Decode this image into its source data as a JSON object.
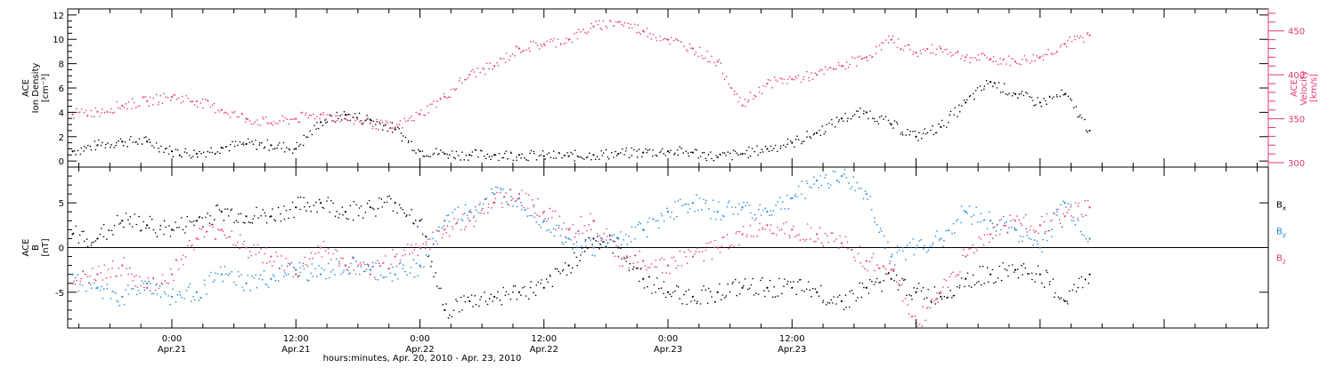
{
  "chart_data": [
    {
      "type": "scatter",
      "panel": "top",
      "ylabel_left": [
        "ACE",
        "Ion Density",
        "[cm⁻³]"
      ],
      "ylabel_right": [
        "ACE",
        "Velocity",
        "[km/s]"
      ],
      "ylim_left": [
        -0.5,
        12.5
      ],
      "yticks_left": [
        "0",
        "2",
        "4",
        "6",
        "8",
        "10",
        "12"
      ],
      "ylim_right": [
        295,
        475
      ],
      "yticks_right": [
        "300",
        "350",
        "400",
        "450"
      ],
      "series": [
        {
          "color": "#000000",
          "axis": "left",
          "x": [
            -0.4,
            -0.3,
            -0.2,
            -0.1,
            0.0,
            0.1,
            0.2,
            0.3,
            0.4,
            0.5,
            0.6,
            0.7,
            0.8,
            0.9,
            1.0,
            1.1,
            1.2,
            1.3,
            1.4,
            1.5,
            1.6,
            1.7,
            1.8,
            1.9,
            2.0,
            2.1,
            2.2,
            2.3,
            2.4,
            2.5,
            2.6,
            2.7,
            2.8,
            2.9,
            3.0,
            3.1,
            3.2,
            3.3,
            3.4,
            3.5,
            3.6,
            3.7
          ],
          "y": [
            0.8,
            1.3,
            1.6,
            1.6,
            0.8,
            0.6,
            1.1,
            1.4,
            1.3,
            1.0,
            3.2,
            3.8,
            3.4,
            2.6,
            0.8,
            0.6,
            0.5,
            0.5,
            0.5,
            0.4,
            0.4,
            0.5,
            0.6,
            0.7,
            0.8,
            0.7,
            0.3,
            0.6,
            1.0,
            1.5,
            2.3,
            3.5,
            4.0,
            3.0,
            2.0,
            2.8,
            4.8,
            6.5,
            5.5,
            4.8,
            5.5,
            2.5
          ]
        },
        {
          "color": "#e8386e",
          "axis": "right",
          "x": [
            -0.4,
            -0.3,
            -0.2,
            -0.1,
            0.0,
            0.1,
            0.2,
            0.3,
            0.4,
            0.5,
            0.6,
            0.7,
            0.8,
            0.9,
            1.0,
            1.1,
            1.2,
            1.3,
            1.4,
            1.5,
            1.6,
            1.7,
            1.8,
            1.9,
            2.0,
            2.1,
            2.2,
            2.3,
            2.4,
            2.5,
            2.6,
            2.7,
            2.8,
            2.9,
            3.0,
            3.1,
            3.2,
            3.3,
            3.4,
            3.5,
            3.6,
            3.7
          ],
          "y": [
            355,
            358,
            365,
            370,
            375,
            370,
            360,
            350,
            345,
            350,
            355,
            350,
            345,
            340,
            355,
            375,
            400,
            410,
            430,
            435,
            440,
            455,
            460,
            450,
            440,
            430,
            415,
            365,
            390,
            395,
            400,
            410,
            420,
            440,
            425,
            430,
            420,
            418,
            415,
            420,
            435,
            445
          ]
        }
      ]
    },
    {
      "type": "scatter",
      "panel": "bottom",
      "ylabel": [
        "ACE",
        "B",
        "[nT]"
      ],
      "ylim": [
        -9,
        9
      ],
      "yticks": [
        "-5",
        "0",
        "5"
      ],
      "legend": [
        "B",
        "B",
        "B"
      ],
      "legend_subscripts": [
        "x",
        "y",
        "z"
      ],
      "legend_placement": "right",
      "series": [
        {
          "color": "#000000",
          "x": [
            -0.4,
            -0.3,
            -0.2,
            -0.1,
            0.0,
            0.1,
            0.2,
            0.3,
            0.4,
            0.5,
            0.6,
            0.7,
            0.8,
            0.9,
            1.0,
            1.1,
            1.2,
            1.3,
            1.4,
            1.5,
            1.6,
            1.7,
            1.8,
            1.9,
            2.0,
            2.1,
            2.2,
            2.3,
            2.4,
            2.5,
            2.6,
            2.7,
            2.8,
            2.9,
            3.0,
            3.1,
            3.2,
            3.3,
            3.4,
            3.5,
            3.6,
            3.7
          ],
          "y": [
            1.5,
            1.0,
            3.0,
            2.5,
            2.0,
            3.0,
            4.0,
            3.5,
            3.5,
            4.5,
            5.0,
            4.0,
            4.5,
            5.0,
            3.0,
            -7.0,
            -6.0,
            -5.5,
            -5.0,
            -4.5,
            -2.0,
            1.0,
            0.0,
            -3.5,
            -5.0,
            -5.5,
            -5.0,
            -4.5,
            -4.5,
            -4.5,
            -5.0,
            -6.0,
            -4.5,
            -3.5,
            -5.0,
            -5.5,
            -3.5,
            -3.0,
            -2.5,
            -3.0,
            -6.0,
            -3.0
          ]
        },
        {
          "color": "#1a84dc",
          "x": [
            -0.4,
            -0.3,
            -0.2,
            -0.1,
            0.0,
            0.1,
            0.2,
            0.3,
            0.4,
            0.5,
            0.6,
            0.7,
            0.8,
            0.9,
            1.0,
            1.1,
            1.2,
            1.3,
            1.4,
            1.5,
            1.6,
            1.7,
            1.8,
            1.9,
            2.0,
            2.1,
            2.2,
            2.3,
            2.4,
            2.5,
            2.6,
            2.7,
            2.8,
            2.9,
            3.0,
            3.1,
            3.2,
            3.3,
            3.4,
            3.5,
            3.6,
            3.7
          ],
          "y": [
            -3.0,
            -4.5,
            -5.5,
            -4.0,
            -5.5,
            -5.0,
            -3.0,
            -4.0,
            -3.5,
            -2.5,
            -3.0,
            -2.0,
            -2.5,
            -3.0,
            -2.0,
            3.0,
            4.0,
            6.0,
            5.5,
            3.0,
            1.0,
            0.0,
            1.0,
            2.0,
            4.0,
            5.0,
            4.0,
            4.5,
            4.0,
            5.5,
            7.5,
            8.0,
            6.0,
            -1.0,
            0.0,
            1.0,
            4.0,
            3.0,
            2.0,
            0.0,
            5.0,
            1.0
          ]
        },
        {
          "color": "#e8386e",
          "x": [
            -0.4,
            -0.3,
            -0.2,
            -0.1,
            0.0,
            0.1,
            0.2,
            0.3,
            0.4,
            0.5,
            0.6,
            0.7,
            0.8,
            0.9,
            1.0,
            1.1,
            1.2,
            1.3,
            1.4,
            1.5,
            1.6,
            1.7,
            1.8,
            1.9,
            2.0,
            2.1,
            2.2,
            2.3,
            2.4,
            2.5,
            2.6,
            2.7,
            2.8,
            2.9,
            3.0,
            3.1,
            3.2,
            3.3,
            3.4,
            3.5,
            3.6,
            3.7
          ],
          "y": [
            -4.0,
            -3.0,
            -2.0,
            -4.5,
            -3.0,
            1.0,
            2.0,
            0.0,
            -1.0,
            -3.0,
            0.0,
            -2.0,
            -3.0,
            -1.0,
            0.0,
            2.0,
            3.0,
            5.0,
            6.0,
            4.0,
            2.0,
            3.0,
            -1.0,
            -1.5,
            -2.0,
            -1.0,
            0.0,
            1.5,
            2.5,
            2.0,
            1.5,
            0.5,
            -1.5,
            -2.5,
            -8.5,
            -5.0,
            -1.0,
            1.5,
            3.0,
            2.5,
            3.5,
            4.5
          ]
        }
      ]
    }
  ],
  "x_axis": {
    "xlim": [
      -0.42,
      4.42
    ],
    "ticks": [
      {
        "x": 0,
        "time": "0:00",
        "date": "Apr.21"
      },
      {
        "x": 0.5,
        "time": "12:00",
        "date": "Apr.21"
      },
      {
        "x": 1.0,
        "time": "0:00",
        "date": "Apr.22"
      },
      {
        "x": 1.5,
        "time": "12:00",
        "date": "Apr.22"
      },
      {
        "x": 2.0,
        "time": "0:00",
        "date": "Apr.23"
      },
      {
        "x": 2.5,
        "time": "12:00",
        "date": "Apr.23"
      }
    ],
    "label": "hours:minutes, Apr. 20, 2010 - Apr. 23, 2010"
  }
}
